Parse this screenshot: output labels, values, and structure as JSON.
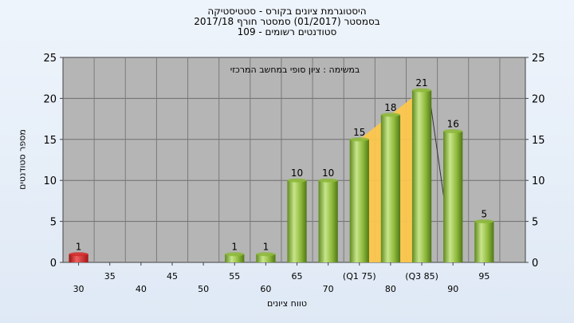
{
  "chart_data": {
    "type": "bar",
    "title_lines": [
      "היסטוגרמת ציונים בקורס - סטטיסטיקה",
      "בסמסטר  (01/2017)  סמסטר חורף 2017/18",
      "סטודנטים רשומים - 109"
    ],
    "annotation": "במשימה : ציון סופי במחשב המרכזי",
    "ylabel": "מספר סטודנטים",
    "xlabel": "טווח ציונים",
    "ylim": [
      0,
      25
    ],
    "yticks": [
      0,
      5,
      10,
      15,
      20,
      25
    ],
    "x_tick_labels": [
      "30",
      "35",
      "40",
      "45",
      "50",
      "55",
      "60",
      "65",
      "70",
      "(Q1 75)",
      "80",
      "(Q3 85)",
      "90",
      "95"
    ],
    "values": [
      1,
      0,
      0,
      0,
      0,
      1,
      1,
      10,
      10,
      15,
      18,
      21,
      16,
      5
    ],
    "bar_colors": [
      "#d42a2a",
      "#8db83a",
      "#8db83a",
      "#8db83a",
      "#8db83a",
      "#8db83a",
      "#8db83a",
      "#8db83a",
      "#8db83a",
      "#8db83a",
      "#8db83a",
      "#8db83a",
      "#8db83a",
      "#8db83a"
    ],
    "quartile_band": {
      "from_category": "(Q1 75)",
      "to_category": "(Q3 85)",
      "color": "#ffc84a"
    },
    "grid": true,
    "plot_background": "#b5b5b5"
  }
}
